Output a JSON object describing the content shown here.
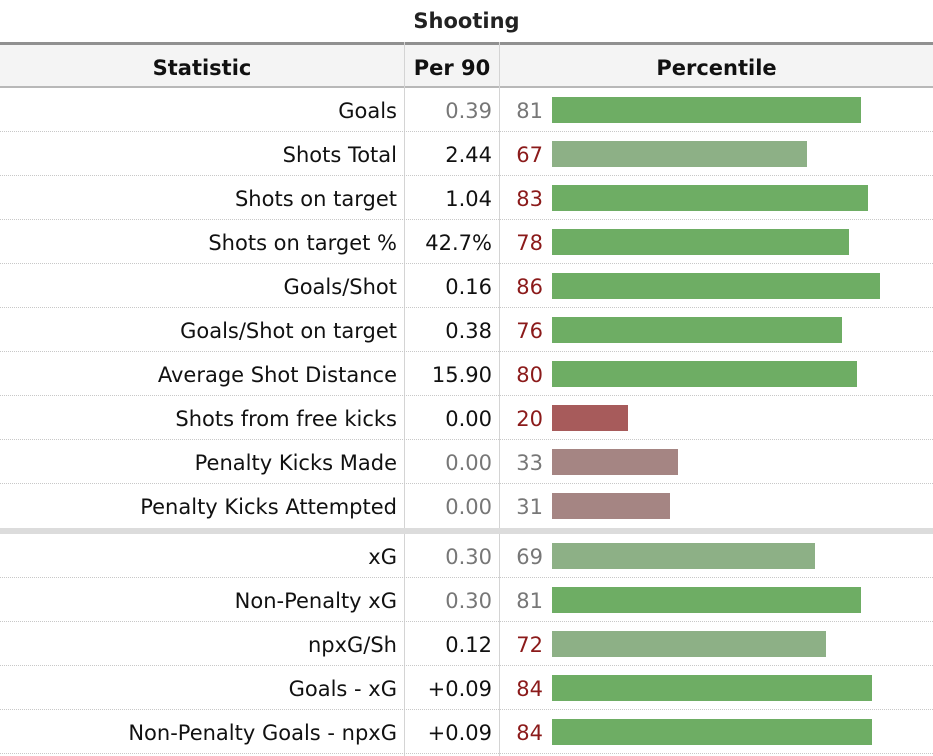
{
  "table": {
    "title": "Shooting",
    "columns": {
      "statistic": "Statistic",
      "per90": "Per 90",
      "percentile": "Percentile"
    },
    "colors": {
      "bar_high": "#6ead64",
      "bar_mid": "#8db086",
      "bar_low_strong": "#a75b5b",
      "bar_low": "#a58583",
      "text_red": "#8b1a1a",
      "text_grey": "#777777"
    },
    "rows": [
      {
        "stat": "Goals",
        "per90": "0.39",
        "percentile": "81",
        "pct": 81,
        "per_style": "grey",
        "pct_style": "grey",
        "bar": "high"
      },
      {
        "stat": "Shots Total",
        "per90": "2.44",
        "percentile": "67",
        "pct": 67,
        "per_style": "black",
        "pct_style": "red",
        "bar": "mid"
      },
      {
        "stat": "Shots on target",
        "per90": "1.04",
        "percentile": "83",
        "pct": 83,
        "per_style": "black",
        "pct_style": "red",
        "bar": "high"
      },
      {
        "stat": "Shots on target %",
        "per90": "42.7%",
        "percentile": "78",
        "pct": 78,
        "per_style": "black",
        "pct_style": "red",
        "bar": "high"
      },
      {
        "stat": "Goals/Shot",
        "per90": "0.16",
        "percentile": "86",
        "pct": 86,
        "per_style": "black",
        "pct_style": "red",
        "bar": "high"
      },
      {
        "stat": "Goals/Shot on target",
        "per90": "0.38",
        "percentile": "76",
        "pct": 76,
        "per_style": "black",
        "pct_style": "red",
        "bar": "high"
      },
      {
        "stat": "Average Shot Distance",
        "per90": "15.90",
        "percentile": "80",
        "pct": 80,
        "per_style": "black",
        "pct_style": "red",
        "bar": "high"
      },
      {
        "stat": "Shots from free kicks",
        "per90": "0.00",
        "percentile": "20",
        "pct": 20,
        "per_style": "black",
        "pct_style": "red",
        "bar": "low_strong"
      },
      {
        "stat": "Penalty Kicks Made",
        "per90": "0.00",
        "percentile": "33",
        "pct": 33,
        "per_style": "grey",
        "pct_style": "grey",
        "bar": "low"
      },
      {
        "stat": "Penalty Kicks Attempted",
        "per90": "0.00",
        "percentile": "31",
        "pct": 31,
        "per_style": "grey",
        "pct_style": "grey",
        "bar": "low",
        "gap_after": true
      },
      {
        "stat": "xG",
        "per90": "0.30",
        "percentile": "69",
        "pct": 69,
        "per_style": "grey",
        "pct_style": "grey",
        "bar": "mid"
      },
      {
        "stat": "Non-Penalty xG",
        "per90": "0.30",
        "percentile": "81",
        "pct": 81,
        "per_style": "grey",
        "pct_style": "grey",
        "bar": "high"
      },
      {
        "stat": "npxG/Sh",
        "per90": "0.12",
        "percentile": "72",
        "pct": 72,
        "per_style": "black",
        "pct_style": "red",
        "bar": "mid"
      },
      {
        "stat": "Goals - xG",
        "per90": "+0.09",
        "percentile": "84",
        "pct": 84,
        "per_style": "black",
        "pct_style": "red",
        "bar": "high"
      },
      {
        "stat": "Non-Penalty Goals - npxG",
        "per90": "+0.09",
        "percentile": "84",
        "pct": 84,
        "per_style": "black",
        "pct_style": "red",
        "bar": "high"
      }
    ]
  }
}
